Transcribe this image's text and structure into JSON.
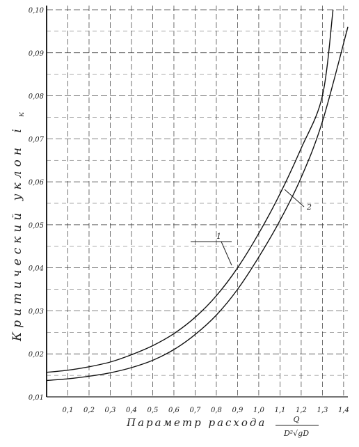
{
  "chart_data": {
    "type": "line",
    "ylabel": "Критический уклон",
    "ylabel_symbol": "i",
    "ylabel_subscript": "к",
    "xlabel": "Параметр расхода",
    "xlabel_formula": {
      "numerator": "Q",
      "denominator": "D²√gD"
    },
    "x_ticks": [
      "0,1",
      "0,2",
      "0,3",
      "0,4",
      "0,5",
      "0,6",
      "0,7",
      "0,8",
      "0,9",
      "1,0",
      "1,1",
      "1,2",
      "1,3",
      "1,4"
    ],
    "y_ticks": [
      "0,01",
      "0,02",
      "0,03",
      "0,04",
      "0,05",
      "0,06",
      "0,07",
      "0,08",
      "0,09",
      "0,10"
    ],
    "xlim": [
      0.0,
      1.42
    ],
    "ylim": [
      0.01,
      0.1
    ],
    "grid": true,
    "series": [
      {
        "name": "1",
        "x": [
          0.0,
          0.1,
          0.2,
          0.3,
          0.4,
          0.5,
          0.6,
          0.7,
          0.8,
          0.9,
          1.0,
          1.1,
          1.2,
          1.3,
          1.35
        ],
        "y": [
          0.0157,
          0.0162,
          0.017,
          0.0181,
          0.0198,
          0.0219,
          0.0247,
          0.0285,
          0.0335,
          0.04,
          0.048,
          0.0572,
          0.0678,
          0.08,
          0.1
        ]
      },
      {
        "name": "2",
        "x": [
          0.0,
          0.1,
          0.2,
          0.3,
          0.4,
          0.5,
          0.6,
          0.7,
          0.8,
          0.9,
          1.0,
          1.1,
          1.2,
          1.3,
          1.42
        ],
        "y": [
          0.0138,
          0.0142,
          0.0148,
          0.0156,
          0.0168,
          0.0185,
          0.021,
          0.0245,
          0.029,
          0.035,
          0.0425,
          0.051,
          0.061,
          0.074,
          0.096
        ]
      }
    ]
  }
}
